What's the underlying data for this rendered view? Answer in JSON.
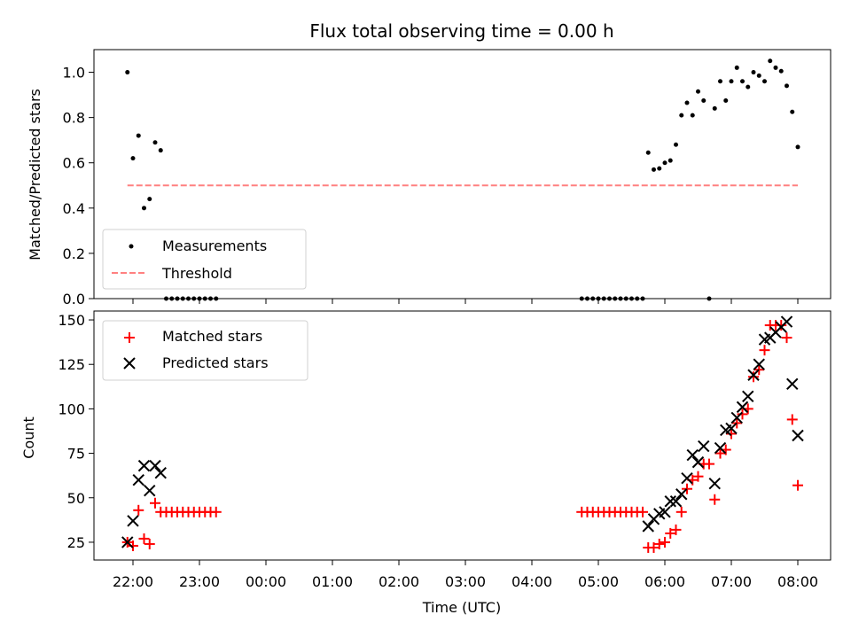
{
  "chart_data": [
    {
      "type": "scatter",
      "title": "Flux total observing time = 0.00 h",
      "ylabel": "Matched/Predicted stars",
      "ylim": [
        0,
        1.1
      ],
      "yticks": [
        "0.0",
        "0.2",
        "0.4",
        "0.6",
        "0.8",
        "1.0"
      ],
      "xlim": [
        "21:30",
        "08:30"
      ],
      "legend_position": "lower-left",
      "series": [
        {
          "name": "Measurements",
          "color": "#000000",
          "marker": "dot",
          "points": [
            [
              "21:55",
              1.0
            ],
            [
              "22:00",
              0.62
            ],
            [
              "22:05",
              0.72
            ],
            [
              "22:10",
              0.4
            ],
            [
              "22:15",
              0.44
            ],
            [
              "22:20",
              0.69
            ],
            [
              "22:25",
              0.655
            ],
            [
              "22:30",
              0
            ],
            [
              "22:35",
              0
            ],
            [
              "22:40",
              0
            ],
            [
              "22:45",
              0
            ],
            [
              "22:50",
              0
            ],
            [
              "22:55",
              0
            ],
            [
              "23:00",
              0
            ],
            [
              "23:05",
              0
            ],
            [
              "23:10",
              0
            ],
            [
              "23:15",
              0
            ],
            [
              "04:45",
              0
            ],
            [
              "04:50",
              0
            ],
            [
              "04:55",
              0
            ],
            [
              "05:00",
              0
            ],
            [
              "05:05",
              0
            ],
            [
              "05:10",
              0
            ],
            [
              "05:15",
              0
            ],
            [
              "05:20",
              0
            ],
            [
              "05:25",
              0
            ],
            [
              "05:30",
              0
            ],
            [
              "05:35",
              0
            ],
            [
              "05:40",
              0
            ],
            [
              "05:45",
              0.645
            ],
            [
              "05:50",
              0.57
            ],
            [
              "05:55",
              0.575
            ],
            [
              "06:00",
              0.6
            ],
            [
              "06:05",
              0.61
            ],
            [
              "06:10",
              0.68
            ],
            [
              "06:15",
              0.81
            ],
            [
              "06:20",
              0.865
            ],
            [
              "06:25",
              0.81
            ],
            [
              "06:30",
              0.915
            ],
            [
              "06:35",
              0.875
            ],
            [
              "06:40",
              0.0
            ],
            [
              "06:45",
              0.84
            ],
            [
              "06:50",
              0.96
            ],
            [
              "06:55",
              0.875
            ],
            [
              "07:00",
              0.96
            ],
            [
              "07:05",
              1.02
            ],
            [
              "07:10",
              0.96
            ],
            [
              "07:15",
              0.935
            ],
            [
              "07:20",
              1.0
            ],
            [
              "07:25",
              0.985
            ],
            [
              "07:30",
              0.96
            ],
            [
              "07:35",
              1.05
            ],
            [
              "07:40",
              1.02
            ],
            [
              "07:45",
              1.005
            ],
            [
              "07:50",
              0.94
            ],
            [
              "07:55",
              0.825
            ],
            [
              "08:00",
              0.67
            ]
          ]
        },
        {
          "name": "Threshold",
          "color": "#ff8080",
          "style": "dashed",
          "points": [
            [
              "21:55",
              0.5
            ],
            [
              "08:00",
              0.5
            ]
          ]
        }
      ]
    },
    {
      "type": "scatter",
      "xlabel": "Time (UTC)",
      "ylabel": "Count",
      "ylim": [
        15,
        155
      ],
      "yticks": [
        "25",
        "50",
        "75",
        "100",
        "125",
        "150"
      ],
      "xticks": [
        "22:00",
        "23:00",
        "00:00",
        "01:00",
        "02:00",
        "03:00",
        "04:00",
        "05:00",
        "06:00",
        "07:00",
        "08:00"
      ],
      "xlim": [
        "21:30",
        "08:30"
      ],
      "legend_position": "upper-left",
      "series": [
        {
          "name": "Matched stars",
          "color": "#ff0000",
          "marker": "plus",
          "points": [
            [
              "21:55",
              25
            ],
            [
              "22:00",
              23
            ],
            [
              "22:05",
              43
            ],
            [
              "22:10",
              27
            ],
            [
              "22:15",
              24
            ],
            [
              "22:20",
              47
            ],
            [
              "22:25",
              42
            ],
            [
              "22:30",
              42
            ],
            [
              "22:35",
              42
            ],
            [
              "22:40",
              42
            ],
            [
              "22:45",
              42
            ],
            [
              "22:50",
              42
            ],
            [
              "22:55",
              42
            ],
            [
              "23:00",
              42
            ],
            [
              "23:05",
              42
            ],
            [
              "23:10",
              42
            ],
            [
              "23:15",
              42
            ],
            [
              "04:45",
              42
            ],
            [
              "04:50",
              42
            ],
            [
              "04:55",
              42
            ],
            [
              "05:00",
              42
            ],
            [
              "05:05",
              42
            ],
            [
              "05:10",
              42
            ],
            [
              "05:15",
              42
            ],
            [
              "05:20",
              42
            ],
            [
              "05:25",
              42
            ],
            [
              "05:30",
              42
            ],
            [
              "05:35",
              42
            ],
            [
              "05:40",
              42
            ],
            [
              "05:45",
              22
            ],
            [
              "05:50",
              22
            ],
            [
              "05:55",
              24
            ],
            [
              "06:00",
              25
            ],
            [
              "06:05",
              30
            ],
            [
              "06:10",
              32
            ],
            [
              "06:15",
              42
            ],
            [
              "06:20",
              55
            ],
            [
              "06:25",
              60
            ],
            [
              "06:30",
              62
            ],
            [
              "06:35",
              69
            ],
            [
              "06:40",
              69
            ],
            [
              "06:45",
              49
            ],
            [
              "06:50",
              75
            ],
            [
              "06:55",
              77
            ],
            [
              "07:00",
              86
            ],
            [
              "07:05",
              92
            ],
            [
              "07:10",
              97
            ],
            [
              "07:15",
              100
            ],
            [
              "07:20",
              118
            ],
            [
              "07:25",
              122
            ],
            [
              "07:30",
              133
            ],
            [
              "07:35",
              147
            ],
            [
              "07:40",
              147
            ],
            [
              "07:45",
              147
            ],
            [
              "07:50",
              140
            ],
            [
              "07:55",
              94
            ],
            [
              "08:00",
              57
            ]
          ]
        },
        {
          "name": "Predicted stars",
          "color": "#000000",
          "marker": "x",
          "points": [
            [
              "21:55",
              25
            ],
            [
              "22:00",
              37
            ],
            [
              "22:05",
              60
            ],
            [
              "22:10",
              68
            ],
            [
              "22:15",
              54
            ],
            [
              "22:20",
              68
            ],
            [
              "22:25",
              64
            ],
            [
              "05:45",
              34
            ],
            [
              "05:50",
              38
            ],
            [
              "05:55",
              41
            ],
            [
              "06:00",
              42
            ],
            [
              "06:05",
              48
            ],
            [
              "06:10",
              48
            ],
            [
              "06:15",
              52
            ],
            [
              "06:20",
              61
            ],
            [
              "06:25",
              74
            ],
            [
              "06:30",
              70
            ],
            [
              "06:35",
              79
            ],
            [
              "06:45",
              58
            ],
            [
              "06:50",
              78
            ],
            [
              "06:55",
              88
            ],
            [
              "07:00",
              89
            ],
            [
              "07:05",
              95
            ],
            [
              "07:10",
              101
            ],
            [
              "07:15",
              107
            ],
            [
              "07:20",
              119
            ],
            [
              "07:25",
              125
            ],
            [
              "07:30",
              139
            ],
            [
              "07:35",
              140
            ],
            [
              "07:40",
              143
            ],
            [
              "07:45",
              146
            ],
            [
              "07:50",
              149
            ],
            [
              "07:55",
              114
            ],
            [
              "08:00",
              85
            ]
          ]
        }
      ]
    }
  ]
}
